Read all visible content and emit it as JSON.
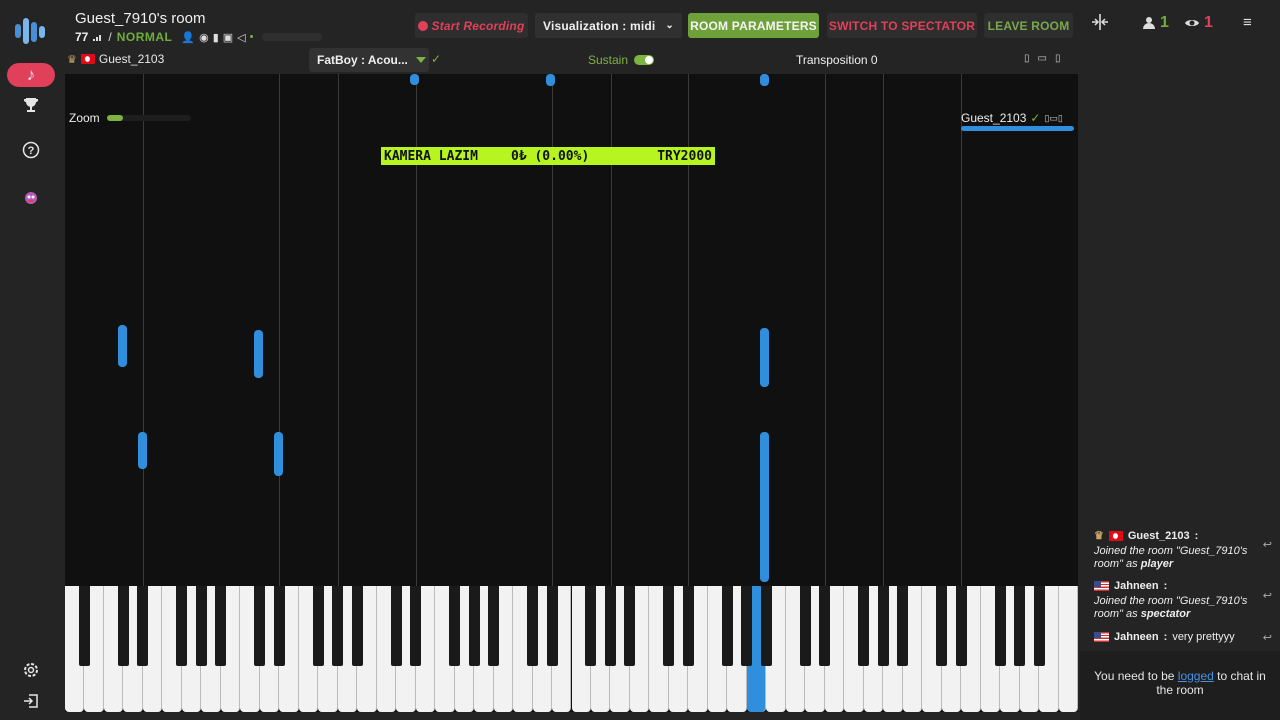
{
  "room": {
    "title": "Guest_7910's room",
    "ping": "77",
    "mode": "NORMAL"
  },
  "toolbar": {
    "record_label": "Start Recording",
    "visualization_label": "Visualization : midi",
    "room_params_label": "ROOM PARAMETERS",
    "spectator_label": "SWITCH TO SPECTATOR",
    "leave_label": "LEAVE ROOM"
  },
  "counts": {
    "players": "1",
    "spectators": "1"
  },
  "player": {
    "name": "Guest_2103",
    "instrument": "FatBoy : Acou...",
    "sustain_label": "Sustain",
    "transposition_label": "Transposition 0"
  },
  "visualization": {
    "zoom_label": "Zoom",
    "zoom_level": 0.2,
    "banner": {
      "left": "KAMERA LAZIM",
      "mid": "0₺ (0.00%)",
      "right": "TRY2000"
    },
    "guest_label": "Guest_2103"
  },
  "chat": {
    "messages": [
      {
        "user": "Guest_2103",
        "prefix": "Joined the room \"Guest_7910's room\" as ",
        "role": "player"
      },
      {
        "user": "Jahneen",
        "prefix": "Joined the room \"Guest_7910's room\" as ",
        "role": "spectator"
      },
      {
        "user": "Jahneen",
        "text": "very prettyyy"
      }
    ],
    "footer_pre": "You need to be ",
    "footer_link": "logged",
    "footer_post": " to chat in the room"
  },
  "colors": {
    "accent_green": "#6fa13a",
    "accent_red": "#e0405a",
    "note_blue": "#2f8fdd",
    "banner": "#b7f520"
  }
}
